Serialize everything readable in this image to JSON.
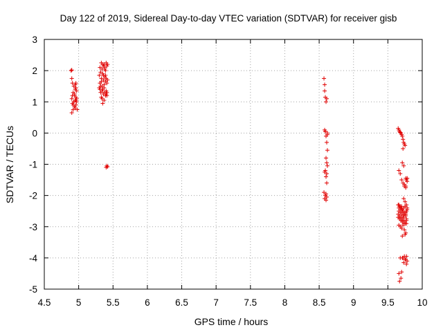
{
  "chart_data": {
    "type": "scatter",
    "title": "Day 122 of 2019, Sidereal Day-to-day VTEC variation (SDTVAR) for receiver gisb",
    "xlabel": "GPS time / hours",
    "ylabel": "SDTVAR / TECUs",
    "xlim": [
      4.5,
      10
    ],
    "ylim": [
      -5,
      3
    ],
    "x_ticks": [
      "4.5",
      "5",
      "5.5",
      "6",
      "6.5",
      "7",
      "7.5",
      "8",
      "8.5",
      "9",
      "9.5",
      "10"
    ],
    "y_ticks": [
      "-5",
      "-4",
      "-3",
      "-2",
      "-1",
      "0",
      "1",
      "2",
      "3"
    ],
    "grid": true,
    "marker": "+",
    "color": "#e00000",
    "series": [
      {
        "name": "SDTVAR",
        "x": [
          4.89,
          4.9,
          4.9,
          4.91,
          4.91,
          4.92,
          4.92,
          4.93,
          4.93,
          4.94,
          4.94,
          4.95,
          4.95,
          4.95,
          4.96,
          4.96,
          4.96,
          4.97,
          4.97,
          4.98,
          4.9,
          4.91,
          4.93,
          4.95,
          4.97,
          4.92,
          4.94,
          4.96,
          4.9,
          4.96,
          5.3,
          5.3,
          5.31,
          5.31,
          5.32,
          5.32,
          5.33,
          5.33,
          5.33,
          5.34,
          5.34,
          5.34,
          5.35,
          5.35,
          5.35,
          5.36,
          5.36,
          5.36,
          5.37,
          5.37,
          5.37,
          5.38,
          5.38,
          5.38,
          5.39,
          5.39,
          5.39,
          5.4,
          5.4,
          5.4,
          5.41,
          5.41,
          5.41,
          5.42,
          5.42,
          5.32,
          5.34,
          5.36,
          5.38,
          5.4,
          5.31,
          5.35,
          5.39,
          5.33,
          5.37,
          5.41,
          5.4,
          5.41,
          5.42,
          8.57,
          8.58,
          8.58,
          8.59,
          8.6,
          8.61,
          8.62,
          8.58,
          8.59,
          8.6,
          8.61,
          8.62,
          8.6,
          8.61,
          8.62,
          8.59,
          8.61,
          8.58,
          8.6,
          8.57,
          8.59,
          8.61,
          8.6,
          8.6,
          8.58,
          8.62,
          8.59,
          8.61,
          9.65,
          9.66,
          9.67,
          9.68,
          9.69,
          9.7,
          9.71,
          9.72,
          9.73,
          9.74,
          9.75,
          9.76,
          9.77,
          9.78,
          9.66,
          9.68,
          9.7,
          9.72,
          9.74,
          9.76,
          9.78,
          9.65,
          9.67,
          9.69,
          9.71,
          9.73,
          9.75,
          9.77,
          9.66,
          9.68,
          9.7,
          9.72,
          9.74,
          9.76,
          9.65,
          9.67,
          9.69,
          9.71,
          9.73,
          9.75,
          9.77,
          9.66,
          9.68,
          9.7,
          9.72,
          9.74,
          9.76,
          9.78,
          9.67,
          9.69,
          9.71,
          9.73,
          9.75,
          9.77,
          9.66,
          9.68,
          9.7,
          9.72,
          9.74,
          9.76,
          9.78,
          9.65,
          9.67,
          9.69,
          9.71,
          9.73,
          9.75,
          9.77,
          9.66,
          9.68,
          9.7,
          9.72,
          9.74,
          9.76,
          9.71,
          9.73,
          9.75,
          9.77,
          9.7,
          9.72,
          9.74,
          9.76,
          9.78,
          9.71,
          9.73,
          9.75,
          9.77,
          9.68,
          9.7,
          9.66,
          9.67,
          9.69,
          9.71,
          9.73,
          9.75,
          9.77,
          9.72,
          9.74,
          9.76,
          9.78
        ],
        "y": [
          2.0,
          1.75,
          1.1,
          1.6,
          0.95,
          1.3,
          0.75,
          1.5,
          1.0,
          1.2,
          0.85,
          1.55,
          1.05,
          0.8,
          1.45,
          1.15,
          0.9,
          1.35,
          1.0,
          0.75,
          0.65,
          1.2,
          1.0,
          1.4,
          1.1,
          0.9,
          1.25,
          1.05,
          2.02,
          1.6,
          1.85,
          1.45,
          2.1,
          1.6,
          1.3,
          1.95,
          2.25,
          1.75,
          1.15,
          2.05,
          1.5,
          1.1,
          1.9,
          1.4,
          0.95,
          2.15,
          1.7,
          1.25,
          2.2,
          1.55,
          1.05,
          2.1,
          1.8,
          1.3,
          2.0,
          1.65,
          1.2,
          2.25,
          1.75,
          1.35,
          2.15,
          1.6,
          1.2,
          2.2,
          1.7,
          1.5,
          1.35,
          1.85,
          2.05,
          1.25,
          1.4,
          2.2,
          1.85,
          1.65,
          1.45,
          1.3,
          -1.1,
          -1.05,
          -1.08,
          1.75,
          1.55,
          1.35,
          1.15,
          1.0,
          1.1,
          0.0,
          0.1,
          0.05,
          -0.1,
          -0.3,
          -0.55,
          -0.8,
          -0.95,
          -1.05,
          -1.2,
          -1.3,
          -1.25,
          -1.4,
          -1.9,
          -2.0,
          -2.05,
          -2.15,
          -1.95,
          -2.1,
          -0.05,
          0.05,
          -1.6,
          0.15,
          0.1,
          0.05,
          0.02,
          0.0,
          -0.05,
          -0.1,
          -0.2,
          -0.3,
          -0.35,
          -0.4,
          -1.45,
          -1.5,
          -1.55,
          -1.2,
          -1.3,
          -1.5,
          -1.6,
          -1.65,
          -1.7,
          -1.45,
          -2.3,
          -2.35,
          -2.4,
          -2.45,
          -2.4,
          -2.35,
          -2.5,
          -2.5,
          -2.55,
          -2.6,
          -2.65,
          -2.6,
          -2.55,
          -2.7,
          -2.75,
          -2.8,
          -2.85,
          -2.7,
          -2.9,
          -2.75,
          -2.4,
          -2.45,
          -2.5,
          -2.55,
          -2.6,
          -2.65,
          -2.4,
          -2.7,
          -2.75,
          -2.8,
          -2.85,
          -2.9,
          -2.8,
          -2.3,
          -2.35,
          -2.4,
          -2.5,
          -2.55,
          -2.6,
          -2.45,
          -2.6,
          -2.65,
          -2.7,
          -2.75,
          -2.8,
          -2.85,
          -2.9,
          -2.95,
          -3.0,
          -3.05,
          -2.95,
          -3.1,
          -3.2,
          -3.3,
          -2.1,
          -2.2,
          -2.3,
          -2.35,
          -4.0,
          -3.95,
          -4.05,
          -4.1,
          -4.0,
          -4.15,
          -4.05,
          -3.95,
          -4.0,
          -4.45,
          -4.5,
          -4.75,
          -4.65,
          -0.95,
          -1.05,
          -3.25,
          -4.2,
          -0.5,
          -1.7,
          -1.75,
          -1.45
        ],
        "color": "#e00000"
      }
    ]
  }
}
